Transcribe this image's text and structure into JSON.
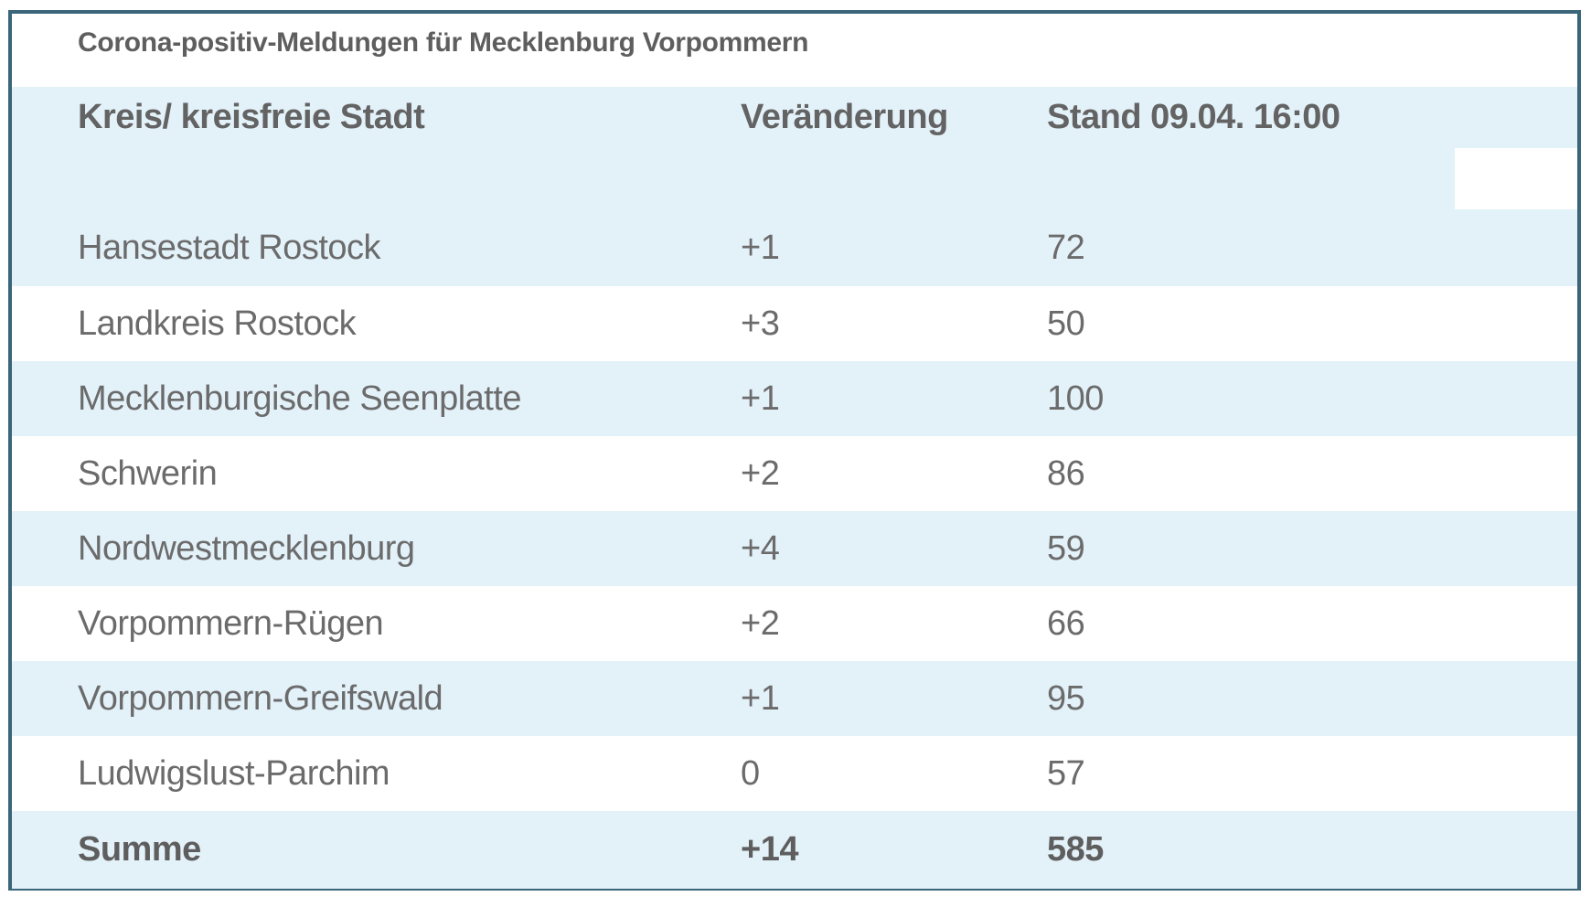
{
  "table": {
    "title": "Corona-positiv-Meldungen für Mecklenburg Vorpommern",
    "columns": {
      "kreis": "Kreis/ kreisfreie Stadt",
      "veraenderung": "Veränderung",
      "stand": "Stand 09.04. 16:00"
    },
    "rows": [
      {
        "name": "Hansestadt Rostock",
        "change": "+1",
        "stand": "72"
      },
      {
        "name": "Landkreis Rostock",
        "change": "+3",
        "stand": "50"
      },
      {
        "name": "Mecklenburgische Seenplatte",
        "change": "+1",
        "stand": "100"
      },
      {
        "name": "Schwerin",
        "change": "+2",
        "stand": "86"
      },
      {
        "name": "Nordwestmecklenburg",
        "change": "+4",
        "stand": "59"
      },
      {
        "name": "Vorpommern-Rügen",
        "change": "+2",
        "stand": "66"
      },
      {
        "name": "Vorpommern-Greifswald",
        "change": "+1",
        "stand": "95"
      },
      {
        "name": "Ludwigslust-Parchim",
        "change": "0",
        "stand": "57"
      }
    ],
    "total": {
      "label": "Summe",
      "change": "+14",
      "stand": "585"
    }
  },
  "colors": {
    "row_blue": "#e3f1f9",
    "border": "#3b6579",
    "title_text": "#5e5e5e",
    "data_text": "#6b6b6b"
  }
}
